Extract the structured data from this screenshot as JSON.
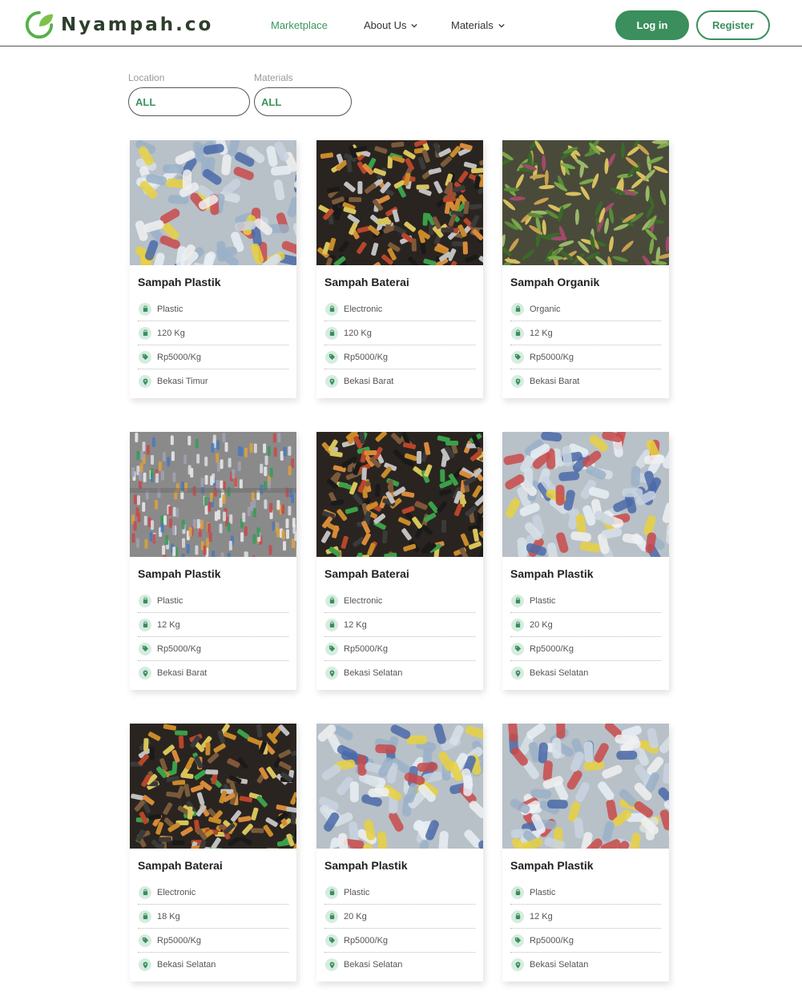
{
  "brand": {
    "name": "Nyampah.co"
  },
  "nav": {
    "items": [
      {
        "label": "Marketplace",
        "active": true,
        "dropdown": false
      },
      {
        "label": "About Us",
        "active": false,
        "dropdown": true
      },
      {
        "label": "Materials",
        "active": false,
        "dropdown": true
      }
    ],
    "login_label": "Log in",
    "register_label": "Register"
  },
  "filters": {
    "location": {
      "label": "Location",
      "value": "ALL"
    },
    "materials": {
      "label": "Materials",
      "value": "ALL"
    }
  },
  "colors": {
    "accent": "#3a8f5c",
    "accent_text": "#3a9460",
    "icon_bg": "#d6ece0"
  },
  "listings": [
    {
      "title": "Sampah Plastik",
      "material": "Plastic",
      "weight": "120 Kg",
      "price": "Rp5000/Kg",
      "location": "Bekasi Timur",
      "image": "plastic-bottles"
    },
    {
      "title": "Sampah Baterai",
      "material": "Electronic",
      "weight": "120 Kg",
      "price": "Rp5000/Kg",
      "location": "Bekasi Barat",
      "image": "batteries"
    },
    {
      "title": "Sampah Organik",
      "material": "Organic",
      "weight": "12 Kg",
      "price": "Rp5000/Kg",
      "location": "Bekasi Barat",
      "image": "organic-plants"
    },
    {
      "title": "Sampah Plastik",
      "material": "Plastic",
      "weight": "12 Kg",
      "price": "Rp5000/Kg",
      "location": "Bekasi Barat",
      "image": "plastic-bales"
    },
    {
      "title": "Sampah Baterai",
      "material": "Electronic",
      "weight": "12 Kg",
      "price": "Rp5000/Kg",
      "location": "Bekasi Selatan",
      "image": "batteries"
    },
    {
      "title": "Sampah Plastik",
      "material": "Plastic",
      "weight": "20 Kg",
      "price": "Rp5000/Kg",
      "location": "Bekasi Selatan",
      "image": "plastic-bottles"
    },
    {
      "title": "Sampah Baterai",
      "material": "Electronic",
      "weight": "18 Kg",
      "price": "Rp5000/Kg",
      "location": "Bekasi Selatan",
      "image": "batteries"
    },
    {
      "title": "Sampah Plastik",
      "material": "Plastic",
      "weight": "20 Kg",
      "price": "Rp5000/Kg",
      "location": "Bekasi Selatan",
      "image": "plastic-bottles"
    },
    {
      "title": "Sampah Plastik",
      "material": "Plastic",
      "weight": "12 Kg",
      "price": "Rp5000/Kg",
      "location": "Bekasi Selatan",
      "image": "plastic-bottles"
    }
  ]
}
